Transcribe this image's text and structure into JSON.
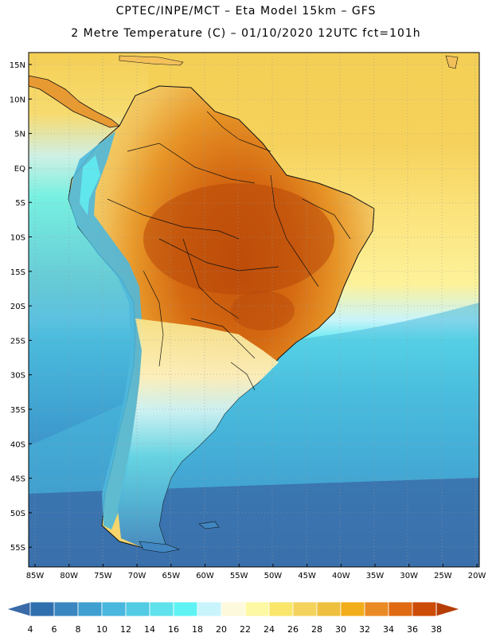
{
  "title_line1": "CPTEC/INPE/MCT –  Eta Model 15km – GFS",
  "title_line2": "2 Metre Temperature (C) – 01/10/2020 12UTC fct=101h",
  "lat_labels": [
    "15N",
    "10N",
    "5N",
    "EQ",
    "5S",
    "10S",
    "15S",
    "20S",
    "25S",
    "30S",
    "35S",
    "40S",
    "45S",
    "50S",
    "55S"
  ],
  "lon_labels": [
    "85W",
    "80W",
    "75W",
    "70W",
    "65W",
    "60W",
    "55W",
    "50W",
    "45W",
    "40W",
    "35W",
    "30W",
    "25W",
    "20W"
  ],
  "legend": {
    "values": [
      "4",
      "6",
      "8",
      "10",
      "12",
      "14",
      "16",
      "18",
      "20",
      "22",
      "24",
      "26",
      "28",
      "30",
      "32",
      "34",
      "36",
      "38"
    ],
    "colors": [
      "#3a6aa8",
      "#2f6fae",
      "#3a86c0",
      "#3f9fd0",
      "#49b7de",
      "#52cbe3",
      "#5fe2ec",
      "#60f3f4",
      "#c9f4fb",
      "#fdf9dc",
      "#fdf8a4",
      "#f9e66b",
      "#f4d35c",
      "#eec040",
      "#f2ad1b",
      "#ea8a24",
      "#e06a12",
      "#cc4b06",
      "#b53e05"
    ]
  },
  "colors": {
    "sea_deep": "#3a66a5",
    "sea_mid": "#3e8fc4",
    "sea_light": "#4cc2e0",
    "sea_cyan": "#63eaf0",
    "sea_warm": "#fbe27a",
    "sea_hot": "#f5cf52",
    "land_hot": "#cc5a0c",
    "land_warm": "#e2891f",
    "land_mild": "#f1c05a"
  }
}
